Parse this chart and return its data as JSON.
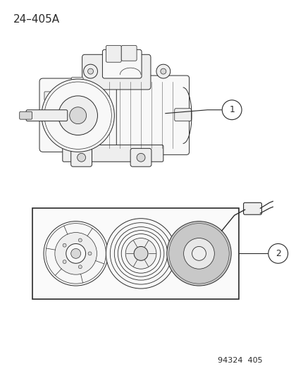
{
  "background_color": "#ffffff",
  "page_id": "24–405A",
  "page_id_fontsize": 11,
  "footer_text": "94324  405",
  "footer_fontsize": 8,
  "line_color": "#2a2a2a",
  "fill_light": "#f8f8f8",
  "fill_mid": "#eeeeee",
  "fill_dark": "#d8d8d8",
  "callout_1": "1",
  "callout_2": "2"
}
